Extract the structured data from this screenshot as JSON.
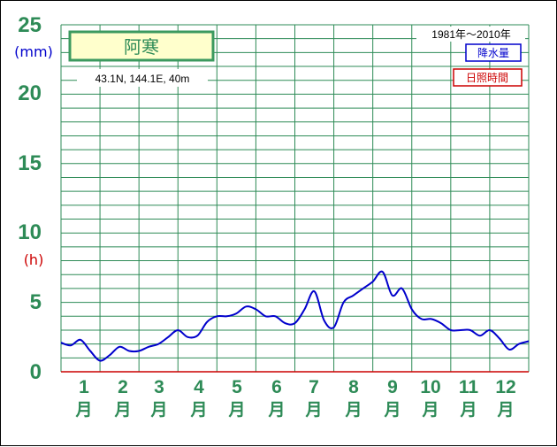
{
  "chart_data": {
    "type": "line",
    "title": "阿寒",
    "location": "43.1N,  144.1E,  40m",
    "period": "1981年～2010年",
    "legend": [
      {
        "label": "降水量",
        "color": "#0000cc"
      },
      {
        "label": "日照時間",
        "color": "#cc0000"
      }
    ],
    "units": {
      "precipitation": "(mm)",
      "sunshine": "(h)"
    },
    "yticks": [
      "0",
      "5",
      "10",
      "15",
      "20",
      "25"
    ],
    "ylim": [
      0,
      25
    ],
    "grid": true,
    "month_numbers": [
      "1",
      "2",
      "3",
      "4",
      "5",
      "6",
      "7",
      "8",
      "9",
      "10",
      "11",
      "12"
    ],
    "month_label": "月",
    "x_range": [
      0.5,
      12.5
    ],
    "series": [
      {
        "name": "降水量",
        "color": "#0000cc",
        "x": [
          0.5,
          0.75,
          1.0,
          1.25,
          1.5,
          1.75,
          2.0,
          2.25,
          2.5,
          2.75,
          3.0,
          3.25,
          3.5,
          3.75,
          4.0,
          4.25,
          4.5,
          4.75,
          5.0,
          5.25,
          5.5,
          5.75,
          6.0,
          6.25,
          6.5,
          6.75,
          7.0,
          7.25,
          7.5,
          7.75,
          8.0,
          8.25,
          8.5,
          8.75,
          9.0,
          9.25,
          9.5,
          9.75,
          10.0,
          10.25,
          10.5,
          10.75,
          11.0,
          11.25,
          11.5,
          11.75,
          12.0,
          12.25,
          12.5
        ],
        "values": [
          2.1,
          1.9,
          2.3,
          1.5,
          0.8,
          1.2,
          1.8,
          1.5,
          1.5,
          1.8,
          2.0,
          2.5,
          3.0,
          2.5,
          2.6,
          3.6,
          4.0,
          4.0,
          4.2,
          4.7,
          4.5,
          4.0,
          4.0,
          3.5,
          3.5,
          4.5,
          5.8,
          3.7,
          3.2,
          5.0,
          5.5,
          6.0,
          6.5,
          7.2,
          5.5,
          6.0,
          4.5,
          3.8,
          3.8,
          3.5,
          3.0,
          3.0,
          3.0,
          2.6,
          3.0,
          2.4,
          1.6,
          2.0,
          2.2
        ]
      }
    ]
  }
}
